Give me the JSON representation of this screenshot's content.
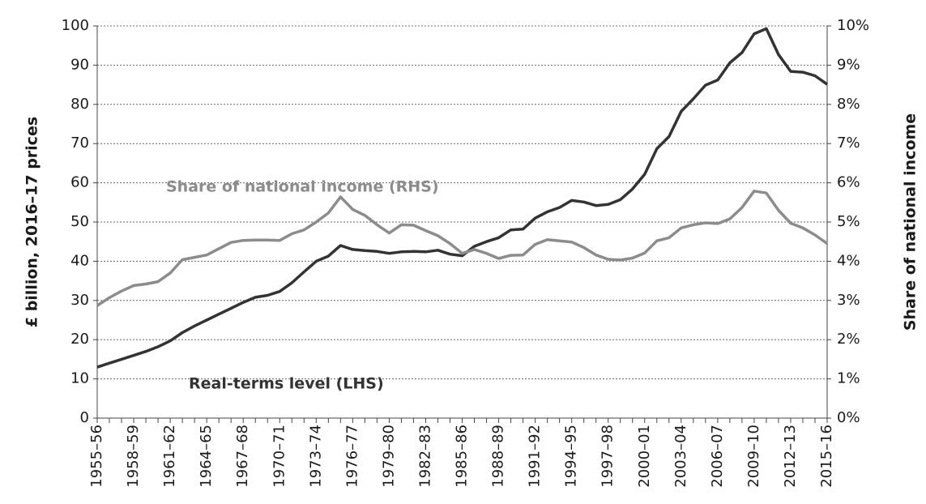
{
  "chart_data": {
    "type": "line",
    "categories": [
      "1955–56",
      null,
      null,
      "1958–59",
      null,
      null,
      "1961–62",
      null,
      null,
      "1964–65",
      null,
      null,
      "1967–68",
      null,
      null,
      "1970–71",
      null,
      null,
      "1973–74",
      null,
      null,
      "1976–77",
      null,
      null,
      "1979–80",
      null,
      null,
      "1982–83",
      null,
      null,
      "1985–86",
      null,
      null,
      "1988–89",
      null,
      null,
      "1991–92",
      null,
      null,
      "1994–95",
      null,
      null,
      "1997–98",
      null,
      null,
      "2000–01",
      null,
      null,
      "2003–04",
      null,
      null,
      "2006–07",
      null,
      null,
      "2009–10",
      null,
      null,
      "2012–13",
      null,
      null,
      "2015–16"
    ],
    "y_label": "£ billion, 2016–17 prices",
    "y2_label": "Share of national income",
    "ylim": [
      0,
      100
    ],
    "yticks": [
      0,
      10,
      20,
      30,
      40,
      50,
      60,
      70,
      80,
      90,
      100
    ],
    "y2lim": [
      0,
      10
    ],
    "y2ticks": [
      {
        "value": 0,
        "label": "0%"
      },
      {
        "value": 1,
        "label": "1%"
      },
      {
        "value": 2,
        "label": "2%"
      },
      {
        "value": 3,
        "label": "3%"
      },
      {
        "value": 4,
        "label": "4%"
      },
      {
        "value": 5,
        "label": "5%"
      },
      {
        "value": 6,
        "label": "6%"
      },
      {
        "value": 7,
        "label": "7%"
      },
      {
        "value": 8,
        "label": "8%"
      },
      {
        "value": 9,
        "label": "9%"
      },
      {
        "value": 10,
        "label": "10%"
      }
    ],
    "grid": true,
    "series": [
      {
        "name": "Real-terms level (LHS)",
        "color": "#333333",
        "values": [
          13,
          14,
          15,
          16,
          17,
          18.2,
          19.7,
          21.8,
          23.5,
          25,
          26.5,
          28,
          29.5,
          30.8,
          31.3,
          32.3,
          34.5,
          37.3,
          40,
          41.3,
          44,
          43,
          42.7,
          42.5,
          42,
          42.4,
          42.5,
          42.4,
          42.8,
          41.8,
          41.4,
          43.8,
          45,
          46,
          48,
          48.2,
          51,
          52.6,
          53.7,
          55.5,
          55.1,
          54.2,
          54.5,
          55.7,
          58.4,
          62.2,
          68.7,
          71.8,
          78.2,
          81.4,
          84.9,
          86.2,
          90.6,
          93.2,
          98,
          99.3,
          92.7,
          88.4,
          88.2,
          87.3,
          85.1
        ]
      },
      {
        "name": "Share of national income (RHS)",
        "color": "#8c8c8c",
        "axis": "y2",
        "values": [
          2.87,
          3.07,
          3.24,
          3.38,
          3.42,
          3.48,
          3.7,
          4.04,
          4.1,
          4.16,
          4.32,
          4.48,
          4.53,
          4.54,
          4.54,
          4.53,
          4.7,
          4.8,
          5.0,
          5.23,
          5.64,
          5.32,
          5.17,
          4.93,
          4.72,
          4.93,
          4.92,
          4.78,
          4.65,
          4.45,
          4.2,
          4.3,
          4.2,
          4.07,
          4.15,
          4.16,
          4.43,
          4.55,
          4.52,
          4.49,
          4.35,
          4.16,
          4.05,
          4.03,
          4.08,
          4.21,
          4.52,
          4.6,
          4.85,
          4.93,
          4.98,
          4.96,
          5.08,
          5.37,
          5.79,
          5.74,
          5.3,
          4.97,
          4.85,
          4.67,
          4.45
        ]
      }
    ]
  }
}
